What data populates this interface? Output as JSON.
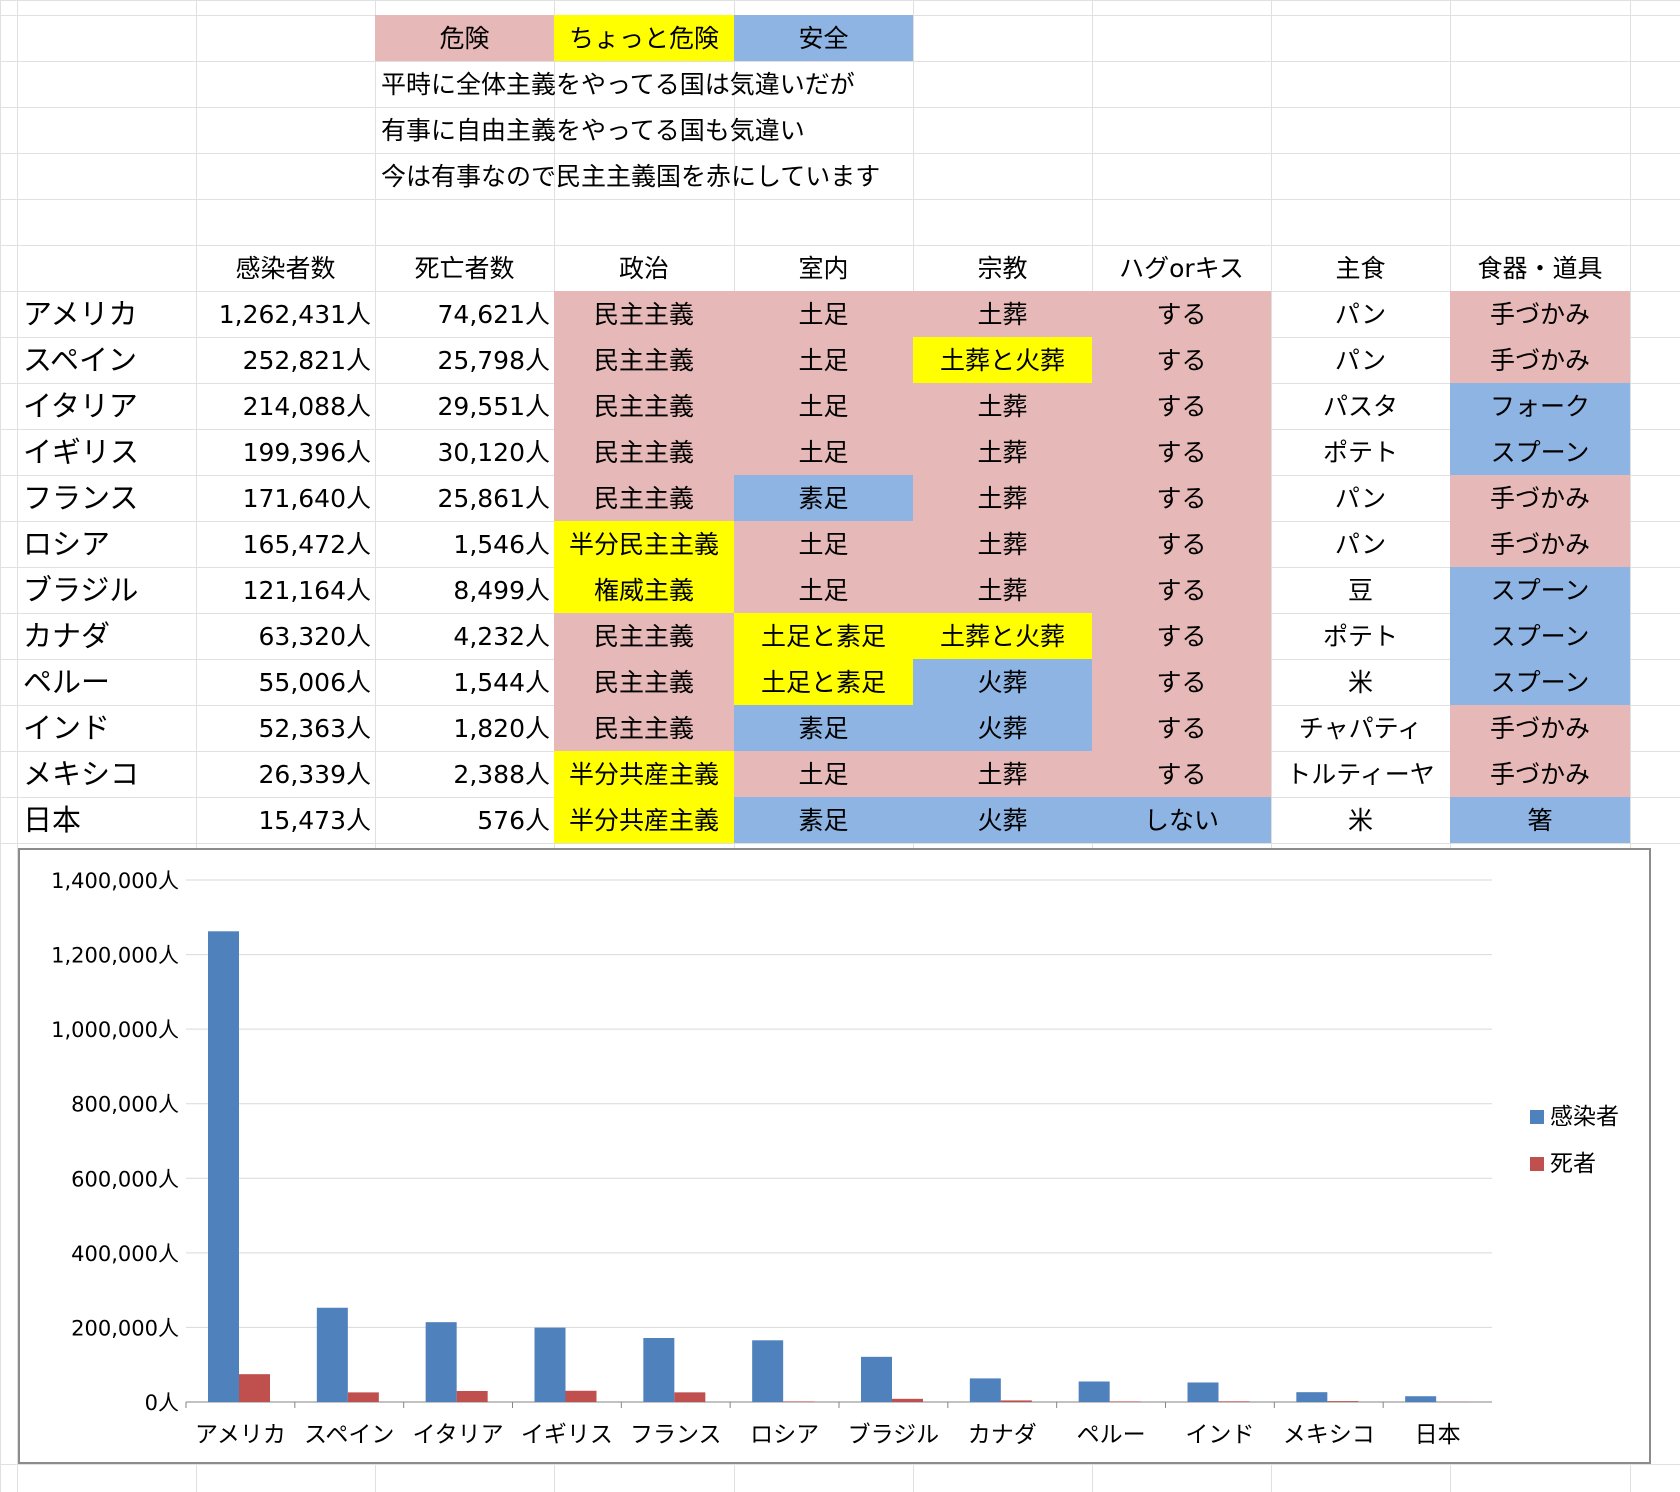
{
  "colors": {
    "danger": "#e6b8b7",
    "caution": "#ffff00",
    "safe": "#8db4e2",
    "infected": "#4f81bd",
    "deaths": "#c0504d",
    "gridline": "#d9d9d9"
  },
  "legend_key": {
    "danger": "危険",
    "caution": "ちょっと危険",
    "safe": "安全"
  },
  "message_lines": [
    "平時に全体主義をやってる国は気違いだが",
    "有事に自由主義をやってる国も気違い",
    "今は有事なので民主主義国を赤にしています"
  ],
  "table": {
    "headers": [
      "",
      "感染者数",
      "死亡者数",
      "政治",
      "室内",
      "宗教",
      "ハグorキス",
      "主食",
      "食器・道具"
    ],
    "rows": [
      {
        "country": "アメリカ",
        "infected": "1,262,431人",
        "deaths": "74,621人",
        "politics": {
          "text": "民主主義",
          "level": "danger"
        },
        "indoor": {
          "text": "土足",
          "level": "danger"
        },
        "religion": {
          "text": "土葬",
          "level": "danger"
        },
        "hug": {
          "text": "する",
          "level": "danger"
        },
        "staple": {
          "text": "パン",
          "level": "none"
        },
        "utensil": {
          "text": "手づかみ",
          "level": "danger"
        }
      },
      {
        "country": "スペイン",
        "infected": "252,821人",
        "deaths": "25,798人",
        "politics": {
          "text": "民主主義",
          "level": "danger"
        },
        "indoor": {
          "text": "土足",
          "level": "danger"
        },
        "religion": {
          "text": "土葬と火葬",
          "level": "caution"
        },
        "hug": {
          "text": "する",
          "level": "danger"
        },
        "staple": {
          "text": "パン",
          "level": "none"
        },
        "utensil": {
          "text": "手づかみ",
          "level": "danger"
        }
      },
      {
        "country": "イタリア",
        "infected": "214,088人",
        "deaths": "29,551人",
        "politics": {
          "text": "民主主義",
          "level": "danger"
        },
        "indoor": {
          "text": "土足",
          "level": "danger"
        },
        "religion": {
          "text": "土葬",
          "level": "danger"
        },
        "hug": {
          "text": "する",
          "level": "danger"
        },
        "staple": {
          "text": "パスタ",
          "level": "none"
        },
        "utensil": {
          "text": "フォーク",
          "level": "safe"
        }
      },
      {
        "country": "イギリス",
        "infected": "199,396人",
        "deaths": "30,120人",
        "politics": {
          "text": "民主主義",
          "level": "danger"
        },
        "indoor": {
          "text": "土足",
          "level": "danger"
        },
        "religion": {
          "text": "土葬",
          "level": "danger"
        },
        "hug": {
          "text": "する",
          "level": "danger"
        },
        "staple": {
          "text": "ポテト",
          "level": "none"
        },
        "utensil": {
          "text": "スプーン",
          "level": "safe"
        }
      },
      {
        "country": "フランス",
        "infected": "171,640人",
        "deaths": "25,861人",
        "politics": {
          "text": "民主主義",
          "level": "danger"
        },
        "indoor": {
          "text": "素足",
          "level": "safe"
        },
        "religion": {
          "text": "土葬",
          "level": "danger"
        },
        "hug": {
          "text": "する",
          "level": "danger"
        },
        "staple": {
          "text": "パン",
          "level": "none"
        },
        "utensil": {
          "text": "手づかみ",
          "level": "danger"
        }
      },
      {
        "country": "ロシア",
        "infected": "165,472人",
        "deaths": "1,546人",
        "politics": {
          "text": "半分民主主義",
          "level": "caution"
        },
        "indoor": {
          "text": "土足",
          "level": "danger"
        },
        "religion": {
          "text": "土葬",
          "level": "danger"
        },
        "hug": {
          "text": "する",
          "level": "danger"
        },
        "staple": {
          "text": "パン",
          "level": "none"
        },
        "utensil": {
          "text": "手づかみ",
          "level": "danger"
        }
      },
      {
        "country": "ブラジル",
        "infected": "121,164人",
        "deaths": "8,499人",
        "politics": {
          "text": "権威主義",
          "level": "caution"
        },
        "indoor": {
          "text": "土足",
          "level": "danger"
        },
        "religion": {
          "text": "土葬",
          "level": "danger"
        },
        "hug": {
          "text": "する",
          "level": "danger"
        },
        "staple": {
          "text": "豆",
          "level": "none"
        },
        "utensil": {
          "text": "スプーン",
          "level": "safe"
        }
      },
      {
        "country": "カナダ",
        "infected": "63,320人",
        "deaths": "4,232人",
        "politics": {
          "text": "民主主義",
          "level": "danger"
        },
        "indoor": {
          "text": "土足と素足",
          "level": "caution"
        },
        "religion": {
          "text": "土葬と火葬",
          "level": "caution"
        },
        "hug": {
          "text": "する",
          "level": "danger"
        },
        "staple": {
          "text": "ポテト",
          "level": "none"
        },
        "utensil": {
          "text": "スプーン",
          "level": "safe"
        }
      },
      {
        "country": "ペルー",
        "infected": "55,006人",
        "deaths": "1,544人",
        "politics": {
          "text": "民主主義",
          "level": "danger"
        },
        "indoor": {
          "text": "土足と素足",
          "level": "caution"
        },
        "religion": {
          "text": "火葬",
          "level": "safe"
        },
        "hug": {
          "text": "する",
          "level": "danger"
        },
        "staple": {
          "text": "米",
          "level": "none"
        },
        "utensil": {
          "text": "スプーン",
          "level": "safe"
        }
      },
      {
        "country": "インド",
        "infected": "52,363人",
        "deaths": "1,820人",
        "politics": {
          "text": "民主主義",
          "level": "danger"
        },
        "indoor": {
          "text": "素足",
          "level": "safe"
        },
        "religion": {
          "text": "火葬",
          "level": "safe"
        },
        "hug": {
          "text": "する",
          "level": "danger"
        },
        "staple": {
          "text": "チャパティ",
          "level": "none"
        },
        "utensil": {
          "text": "手づかみ",
          "level": "danger"
        }
      },
      {
        "country": "メキシコ",
        "infected": "26,339人",
        "deaths": "2,388人",
        "politics": {
          "text": "半分共産主義",
          "level": "caution"
        },
        "indoor": {
          "text": "土足",
          "level": "danger"
        },
        "religion": {
          "text": "土葬",
          "level": "danger"
        },
        "hug": {
          "text": "する",
          "level": "danger"
        },
        "staple": {
          "text": "トルティーヤ",
          "level": "none"
        },
        "utensil": {
          "text": "手づかみ",
          "level": "danger"
        }
      },
      {
        "country": "日本",
        "infected": "15,473人",
        "deaths": "576人",
        "politics": {
          "text": "半分共産主義",
          "level": "caution"
        },
        "indoor": {
          "text": "素足",
          "level": "safe"
        },
        "religion": {
          "text": "火葬",
          "level": "safe"
        },
        "hug": {
          "text": "しない",
          "level": "safe"
        },
        "staple": {
          "text": "米",
          "level": "none"
        },
        "utensil": {
          "text": "箸",
          "level": "safe"
        }
      }
    ]
  },
  "chart_data": {
    "type": "bar",
    "categories": [
      "アメリカ",
      "スペイン",
      "イタリア",
      "イギリス",
      "フランス",
      "ロシア",
      "ブラジル",
      "カナダ",
      "ペルー",
      "インド",
      "メキシコ",
      "日本"
    ],
    "series": [
      {
        "name": "感染者",
        "color": "#4f81bd",
        "values": [
          1262431,
          252821,
          214088,
          199396,
          171640,
          165472,
          121164,
          63320,
          55006,
          52363,
          26339,
          15473
        ]
      },
      {
        "name": "死者",
        "color": "#c0504d",
        "values": [
          74621,
          25798,
          29551,
          30120,
          25861,
          1546,
          8499,
          4232,
          1544,
          1820,
          2388,
          576
        ]
      }
    ],
    "ylim": [
      0,
      1400000
    ],
    "ytick_labels": [
      "0人",
      "200,000人",
      "400,000人",
      "600,000人",
      "800,000人",
      "1,000,000人",
      "1,200,000人",
      "1,400,000人"
    ],
    "grid": true,
    "legend_position": "right"
  }
}
